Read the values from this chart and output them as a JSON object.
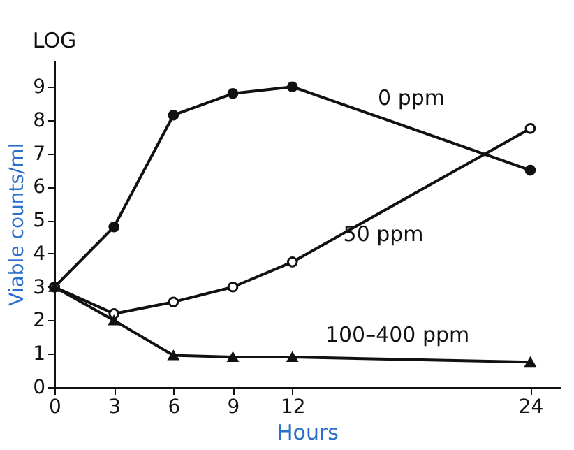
{
  "chart_data": {
    "type": "line",
    "xlabel": "Hours",
    "ylabel": "Viable counts/ml",
    "annotations": [
      "LOG"
    ],
    "x": [
      0,
      3,
      6,
      9,
      12,
      24
    ],
    "xlim": [
      0,
      25.5
    ],
    "xticks": [
      0,
      3,
      6,
      9,
      12,
      24
    ],
    "ylim": [
      0,
      9.8
    ],
    "yticks": [
      0,
      1,
      2,
      3,
      4,
      5,
      6,
      7,
      8,
      9
    ],
    "grid": false,
    "legend": false,
    "line_style": "solid",
    "series": [
      {
        "name": "0 ppm",
        "color": "#111111",
        "marker": "circle",
        "values": [
          3,
          4.8,
          8.15,
          8.8,
          9.0,
          6.5
        ]
      },
      {
        "name": "50 ppm",
        "color": "#111111",
        "marker": "circle",
        "values": [
          3,
          2.2,
          2.55,
          3.0,
          3.75,
          7.75
        ]
      },
      {
        "name": "100–400 ppm",
        "color": "#111111",
        "marker": "triangle",
        "values": [
          3,
          2.0,
          0.95,
          0.9,
          0.9,
          0.75
        ]
      }
    ]
  }
}
